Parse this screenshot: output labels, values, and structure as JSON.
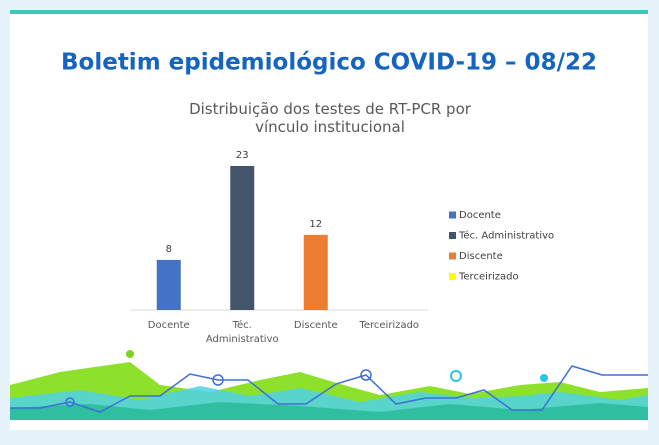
{
  "heading": "Boletim epidemiológico COVID-19 – 08/22",
  "chart_data": {
    "type": "bar",
    "title": "Distribuição dos testes de RT-PCR por vínculo institucional",
    "categories": [
      "Docente",
      "Téc. Administrativo",
      "Discente",
      "Terceirizado"
    ],
    "values": [
      8,
      23,
      12,
      null
    ],
    "colors": [
      "#4472c4",
      "#44546a",
      "#ed7d31",
      "#ffff00"
    ],
    "legend": "right"
  }
}
